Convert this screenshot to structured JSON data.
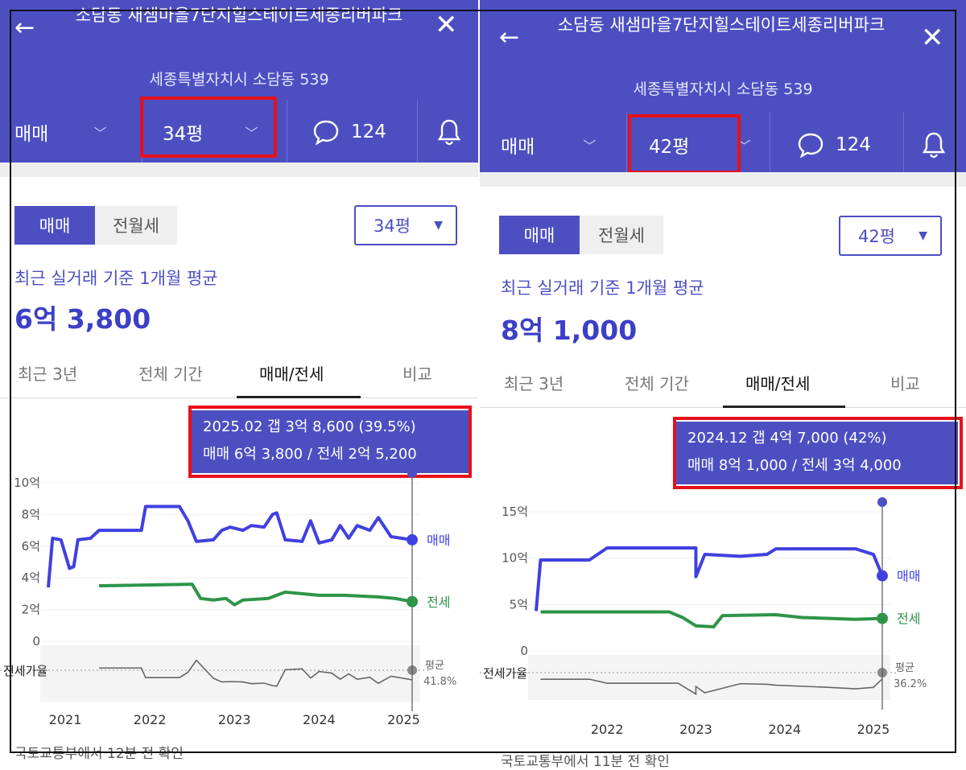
{
  "panels": [
    {
      "title": "소담동 새샘마을7단지힐스테이트세종리버파크",
      "address": "세종특별자치시 소담동 539",
      "nav": {
        "trade": "매매",
        "area": "34평",
        "comment_count": "124"
      },
      "seg": {
        "left": "매매",
        "right": "전월세"
      },
      "area_select": "34평",
      "subtitle": "최근 실거래 기준 1개월 평균",
      "price": "6억 3,800",
      "tabs": [
        "최근 3년",
        "전체 기간",
        "매매/전세",
        "비교"
      ],
      "tooltip": {
        "line1": "2025.02  갭 3억 8,600 (39.5%)",
        "line2": "매매 6억 3,800 / 전세 2억 5,200"
      },
      "chart": {
        "yticks": [
          "10억",
          "8억",
          "6억",
          "4억",
          "2억",
          "0"
        ],
        "xticks": [
          "2021",
          "2022",
          "2023",
          "2024",
          "2025"
        ],
        "series_labels": {
          "sale": "매매",
          "jeonse": "전세"
        },
        "ratio_label": "전세가율",
        "avg_label": "평균",
        "avg_value": "41.8%"
      },
      "footer": "국토교통부에서 12분 전 확인"
    },
    {
      "title": "소담동 새샘마을7단지힐스테이트세종리버파크",
      "address": "세종특별자치시 소담동 539",
      "nav": {
        "trade": "매매",
        "area": "42평",
        "comment_count": "124"
      },
      "seg": {
        "left": "매매",
        "right": "전월세"
      },
      "area_select": "42평",
      "subtitle": "최근 실거래 기준 1개월 평균",
      "price": "8억 1,000",
      "tabs": [
        "최근 3년",
        "전체 기간",
        "매매/전세",
        "비교"
      ],
      "tooltip": {
        "line1": "2024.12  갭 4억 7,000 (42%)",
        "line2": "매매 8억 1,000 / 전세 3억 4,000"
      },
      "chart": {
        "yticks": [
          "15억",
          "10억",
          "5억",
          "0"
        ],
        "xticks": [
          "2022",
          "2023",
          "2024",
          "2025"
        ],
        "series_labels": {
          "sale": "매매",
          "jeonse": "전세"
        },
        "ratio_label": "전세가율",
        "avg_label": "평균",
        "avg_value": "36.2%"
      },
      "footer": "국토교통부에서 11분 전 확인"
    }
  ],
  "chart_data": [
    {
      "type": "line",
      "x_unit": "year",
      "ylim": [
        0,
        10
      ],
      "y_unit": "억",
      "series": [
        {
          "name": "매매",
          "color": "#4040e0",
          "points": [
            [
              2020.8,
              3.4
            ],
            [
              2020.85,
              6.5
            ],
            [
              2020.95,
              6.4
            ],
            [
              2021.05,
              4.6
            ],
            [
              2021.1,
              4.7
            ],
            [
              2021.15,
              6.4
            ],
            [
              2021.3,
              6.5
            ],
            [
              2021.4,
              7.0
            ],
            [
              2021.9,
              7.0
            ],
            [
              2021.95,
              8.5
            ],
            [
              2022.35,
              8.5
            ],
            [
              2022.45,
              7.6
            ],
            [
              2022.55,
              6.3
            ],
            [
              2022.75,
              6.4
            ],
            [
              2022.85,
              7.0
            ],
            [
              2022.95,
              7.2
            ],
            [
              2023.1,
              7.0
            ],
            [
              2023.2,
              7.3
            ],
            [
              2023.35,
              7.2
            ],
            [
              2023.45,
              8.0
            ],
            [
              2023.5,
              8.1
            ],
            [
              2023.6,
              6.4
            ],
            [
              2023.8,
              6.3
            ],
            [
              2023.9,
              7.6
            ],
            [
              2024.0,
              6.2
            ],
            [
              2024.15,
              6.4
            ],
            [
              2024.25,
              7.3
            ],
            [
              2024.35,
              6.5
            ],
            [
              2024.45,
              7.3
            ],
            [
              2024.6,
              7.0
            ],
            [
              2024.7,
              7.8
            ],
            [
              2024.85,
              6.6
            ],
            [
              2025.1,
              6.4
            ]
          ]
        },
        {
          "name": "전세",
          "color": "#2e9448",
          "points": [
            [
              2021.4,
              3.5
            ],
            [
              2022.5,
              3.6
            ],
            [
              2022.6,
              2.7
            ],
            [
              2022.75,
              2.6
            ],
            [
              2022.9,
              2.7
            ],
            [
              2023.0,
              2.3
            ],
            [
              2023.1,
              2.6
            ],
            [
              2023.4,
              2.7
            ],
            [
              2023.6,
              3.1
            ],
            [
              2024.0,
              2.9
            ],
            [
              2024.3,
              2.9
            ],
            [
              2024.7,
              2.8
            ],
            [
              2024.9,
              2.7
            ],
            [
              2025.1,
              2.5
            ]
          ]
        }
      ],
      "ratio_series": {
        "name": "전세가율",
        "average": 41.8
      }
    },
    {
      "type": "line",
      "x_unit": "year",
      "ylim": [
        0,
        15
      ],
      "y_unit": "억",
      "series": [
        {
          "name": "매매",
          "color": "#4040e0",
          "points": [
            [
              2021.2,
              4.3
            ],
            [
              2021.25,
              9.8
            ],
            [
              2021.8,
              9.8
            ],
            [
              2022.0,
              11.1
            ],
            [
              2022.8,
              11.1
            ],
            [
              2023.0,
              11.1
            ],
            [
              2023.0,
              8.0
            ],
            [
              2023.1,
              10.4
            ],
            [
              2023.5,
              10.2
            ],
            [
              2023.8,
              10.4
            ],
            [
              2023.9,
              11.0
            ],
            [
              2024.5,
              11.0
            ],
            [
              2024.8,
              11.0
            ],
            [
              2025.0,
              10.4
            ],
            [
              2025.1,
              8.1
            ]
          ]
        },
        {
          "name": "전세",
          "color": "#2e9448",
          "points": [
            [
              2021.25,
              4.2
            ],
            [
              2022.7,
              4.2
            ],
            [
              2022.85,
              3.6
            ],
            [
              2023.0,
              2.7
            ],
            [
              2023.2,
              2.6
            ],
            [
              2023.3,
              3.8
            ],
            [
              2023.9,
              3.9
            ],
            [
              2024.2,
              3.6
            ],
            [
              2024.8,
              3.4
            ],
            [
              2025.1,
              3.5
            ]
          ]
        }
      ],
      "ratio_series": {
        "name": "전세가율",
        "average": 36.2
      }
    }
  ]
}
